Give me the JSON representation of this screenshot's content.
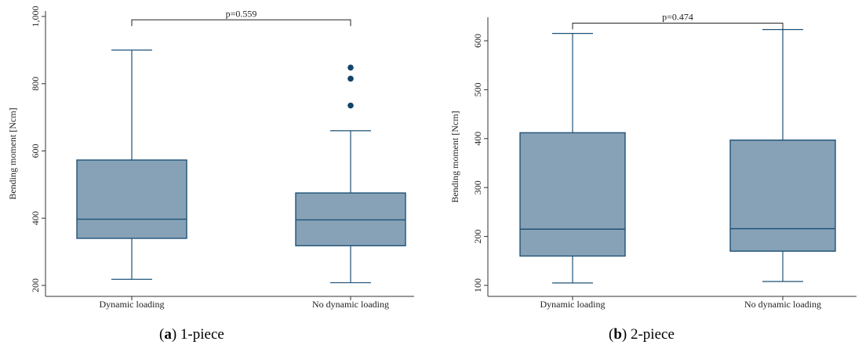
{
  "chart_data": [
    {
      "type": "box",
      "caption": {
        "letter": "a",
        "text": "1-piece"
      },
      "ylabel": "Bending moment [Ncm]",
      "ylim": [
        200,
        1000
      ],
      "yticks": [
        200,
        400,
        600,
        800,
        1000
      ],
      "ytick_labels": [
        "200",
        "400",
        "600",
        "800",
        "1,000"
      ],
      "categories": [
        "Dynamic loading",
        "No dynamic loading"
      ],
      "boxes": [
        {
          "category": "Dynamic loading",
          "whisker_low": 218,
          "q1": 340,
          "median": 397,
          "q3": 573,
          "whisker_high": 900,
          "outliers": []
        },
        {
          "category": "No dynamic loading",
          "whisker_low": 208,
          "q1": 318,
          "median": 395,
          "q3": 475,
          "whisker_high": 660,
          "outliers": [
            735,
            815,
            848
          ]
        }
      ],
      "comparison": {
        "label": "p=0.559",
        "bracket_y": 990
      }
    },
    {
      "type": "box",
      "caption": {
        "letter": "b",
        "text": "2-piece"
      },
      "ylabel": "Bending moment [Ncm]",
      "ylim": [
        100,
        600
      ],
      "yticks": [
        100,
        200,
        300,
        400,
        500,
        600
      ],
      "ytick_labels": [
        "100",
        "200",
        "300",
        "400",
        "500",
        "600"
      ],
      "categories": [
        "Dynamic loading",
        "No dynamic loading"
      ],
      "boxes": [
        {
          "category": "Dynamic loading",
          "whisker_low": 105,
          "q1": 160,
          "median": 215,
          "q3": 412,
          "whisker_high": 615,
          "outliers": []
        },
        {
          "category": "No dynamic loading",
          "whisker_low": 108,
          "q1": 170,
          "median": 216,
          "q3": 397,
          "whisker_high": 623,
          "outliers": []
        }
      ],
      "comparison": {
        "label": "p=0.474",
        "bracket_y": 636
      }
    }
  ],
  "colors": {
    "box_fill": "#87a2b6",
    "box_stroke": "#1f5278",
    "outlier": "#12456b",
    "axis": "#333333",
    "bracket": "#222222"
  }
}
